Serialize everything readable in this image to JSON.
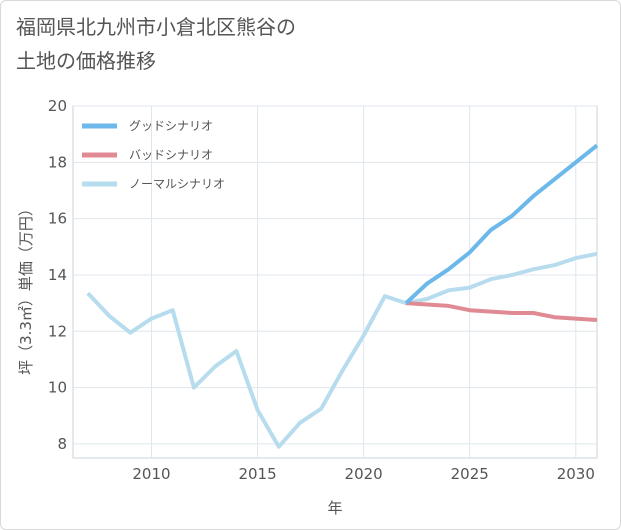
{
  "title_lines": [
    "福岡県北九州市小倉北区熊谷の",
    "土地の価格推移"
  ],
  "chart_data": {
    "type": "line",
    "xlabel": "年",
    "ylabel": "坪（3.3㎡）単価（万円）",
    "xlim": [
      2006.3,
      2031
    ],
    "ylim": [
      7.5,
      20
    ],
    "x_ticks": [
      2010,
      2015,
      2020,
      2025,
      2030
    ],
    "y_ticks": [
      8,
      10,
      12,
      14,
      16,
      18,
      20
    ],
    "grid": true,
    "legend_position": "top-left",
    "series": [
      {
        "name": "グッドシナリオ",
        "color": "#6cb8eb",
        "x": [
          2022,
          2023,
          2024,
          2025,
          2026,
          2027,
          2028,
          2029,
          2030,
          2031
        ],
        "y": [
          13.0,
          13.7,
          14.2,
          14.8,
          15.6,
          16.1,
          16.8,
          17.4,
          18.0,
          18.6
        ]
      },
      {
        "name": "バッドシナリオ",
        "color": "#e08a94",
        "x": [
          2022,
          2023,
          2024,
          2025,
          2026,
          2027,
          2028,
          2029,
          2030,
          2031
        ],
        "y": [
          13.0,
          12.95,
          12.9,
          12.75,
          12.7,
          12.65,
          12.65,
          12.5,
          12.45,
          12.4
        ]
      },
      {
        "name": "ノーマルシナリオ",
        "color": "#b7dced",
        "x": [
          2007,
          2008,
          2009,
          2010,
          2011,
          2012,
          2013,
          2014,
          2015,
          2016,
          2017,
          2018,
          2019,
          2020,
          2021,
          2022,
          2023,
          2024,
          2025,
          2026,
          2027,
          2028,
          2029,
          2030,
          2031
        ],
        "y": [
          13.35,
          12.55,
          11.95,
          12.45,
          12.75,
          10.0,
          10.75,
          11.3,
          9.2,
          7.9,
          8.75,
          9.25,
          10.6,
          11.85,
          13.25,
          13.0,
          13.15,
          13.45,
          13.55,
          13.85,
          14.0,
          14.2,
          14.35,
          14.6,
          14.75
        ]
      }
    ]
  }
}
